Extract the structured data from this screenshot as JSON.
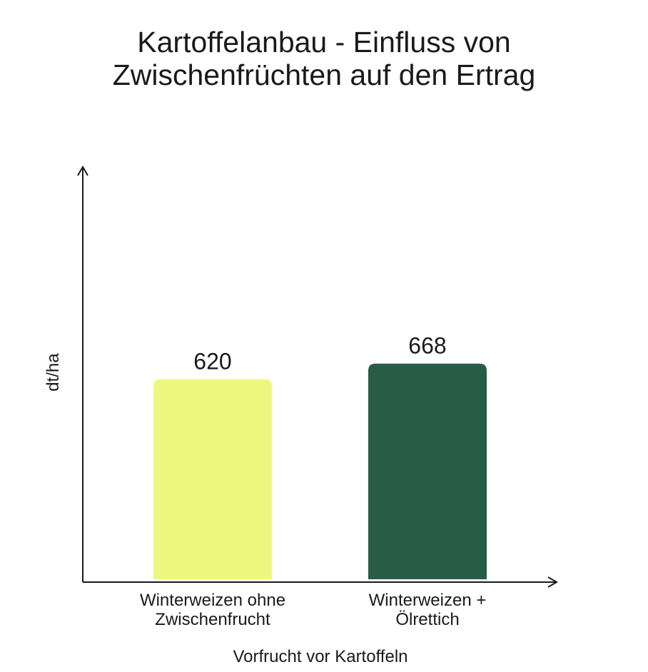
{
  "chart_data": {
    "type": "bar",
    "title_lines": [
      "Kartoffelanbau - Einfluss von",
      "Zwischenfrüchten auf den Ertrag"
    ],
    "xlabel": "Vorfrucht vor Kartoffeln",
    "ylabel": "dt/ha",
    "categories": [
      [
        "Winterweizen ohne",
        "Zwischenfrucht"
      ],
      [
        "Winterweizen +",
        "Ölrettich"
      ]
    ],
    "values": [
      620,
      668
    ],
    "value_labels": [
      "620",
      "668"
    ],
    "colors": [
      "#eef77d",
      "#275c45"
    ],
    "ylim": [
      0,
      900
    ],
    "grid": false,
    "legend": "none"
  }
}
